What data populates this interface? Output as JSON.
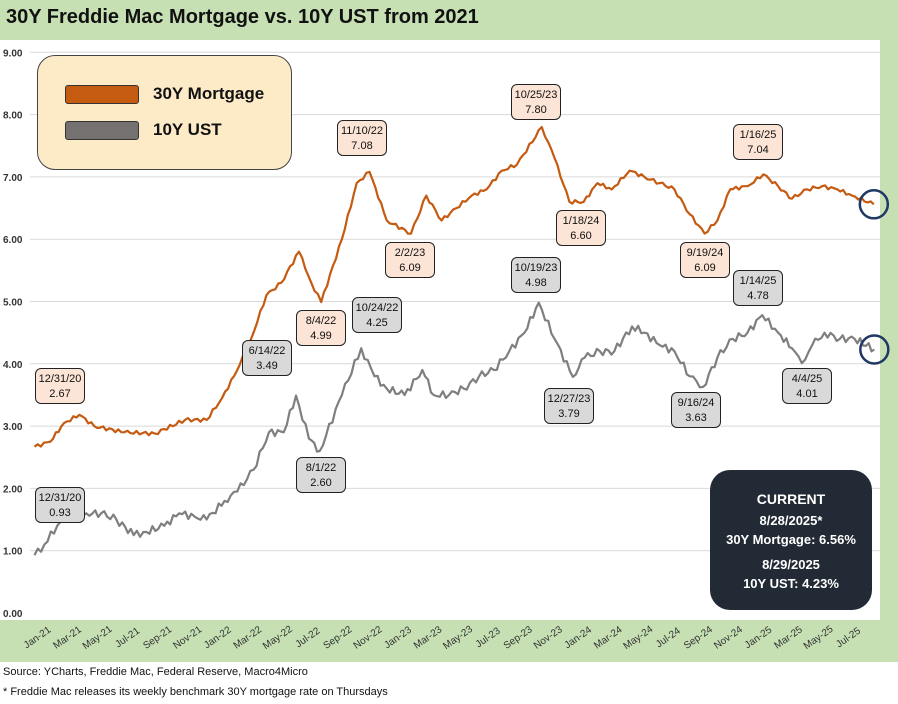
{
  "chart_data": {
    "type": "line",
    "title": "30Y Freddie Mac Mortgage vs. 10Y UST from 2021",
    "xlabel": "",
    "ylabel": "",
    "ylim": [
      0,
      9
    ],
    "yticks": [
      "0.00",
      "1.00",
      "2.00",
      "3.00",
      "4.00",
      "5.00",
      "6.00",
      "7.00",
      "8.00",
      "9.00"
    ],
    "xticks": [
      "Jan-21",
      "Mar-21",
      "May-21",
      "Jul-21",
      "Sep-21",
      "Nov-21",
      "Jan-22",
      "Mar-22",
      "May-22",
      "Jul-22",
      "Sep-22",
      "Nov-22",
      "Jan-23",
      "Mar-23",
      "May-23",
      "Jul-23",
      "Sep-23",
      "Nov-23",
      "Jan-24",
      "Mar-24",
      "May-24",
      "Jul-24",
      "Sep-24",
      "Nov-24",
      "Jan-25",
      "Mar-25",
      "May-25",
      "Jul-25"
    ],
    "grid": true,
    "legend_placement": "top-left",
    "series": [
      {
        "name": "30Y Mortgage",
        "color": "#c55a11",
        "points": [
          [
            "2020-12-31",
            2.67
          ],
          [
            "2021-02-01",
            2.75
          ],
          [
            "2021-03-01",
            3.05
          ],
          [
            "2021-04-01",
            3.18
          ],
          [
            "2021-05-01",
            3.0
          ],
          [
            "2021-07-01",
            2.9
          ],
          [
            "2021-09-01",
            2.88
          ],
          [
            "2021-11-01",
            3.1
          ],
          [
            "2021-12-15",
            3.1
          ],
          [
            "2022-01-15",
            3.45
          ],
          [
            "2022-02-15",
            3.9
          ],
          [
            "2022-03-15",
            4.4
          ],
          [
            "2022-04-15",
            5.1
          ],
          [
            "2022-05-15",
            5.3
          ],
          [
            "2022-06-20",
            5.8
          ],
          [
            "2022-07-15",
            5.3
          ],
          [
            "2022-08-04",
            4.99
          ],
          [
            "2022-09-15",
            6.0
          ],
          [
            "2022-10-15",
            6.9
          ],
          [
            "2022-11-10",
            7.08
          ],
          [
            "2022-12-15",
            6.3
          ],
          [
            "2023-02-02",
            6.09
          ],
          [
            "2023-03-05",
            6.7
          ],
          [
            "2023-04-05",
            6.3
          ],
          [
            "2023-05-05",
            6.5
          ],
          [
            "2023-06-05",
            6.7
          ],
          [
            "2023-07-05",
            6.8
          ],
          [
            "2023-08-05",
            7.1
          ],
          [
            "2023-09-05",
            7.2
          ],
          [
            "2023-10-25",
            7.8
          ],
          [
            "2023-11-20",
            7.3
          ],
          [
            "2023-12-20",
            6.6
          ],
          [
            "2024-01-18",
            6.6
          ],
          [
            "2024-02-15",
            6.9
          ],
          [
            "2024-03-15",
            6.8
          ],
          [
            "2024-04-20",
            7.1
          ],
          [
            "2024-05-20",
            7.0
          ],
          [
            "2024-06-20",
            6.9
          ],
          [
            "2024-07-20",
            6.8
          ],
          [
            "2024-08-20",
            6.4
          ],
          [
            "2024-09-19",
            6.09
          ],
          [
            "2024-10-15",
            6.3
          ],
          [
            "2024-11-10",
            6.8
          ],
          [
            "2024-12-15",
            6.85
          ],
          [
            "2025-01-16",
            7.04
          ],
          [
            "2025-02-15",
            6.85
          ],
          [
            "2025-03-15",
            6.65
          ],
          [
            "2025-04-15",
            6.8
          ],
          [
            "2025-05-15",
            6.85
          ],
          [
            "2025-06-15",
            6.8
          ],
          [
            "2025-07-15",
            6.7
          ],
          [
            "2025-08-28",
            6.56
          ]
        ]
      },
      {
        "name": "10Y UST",
        "color": "#7f7f7f",
        "points": [
          [
            "2020-12-31",
            0.93
          ],
          [
            "2021-01-20",
            1.1
          ],
          [
            "2021-02-15",
            1.4
          ],
          [
            "2021-03-20",
            1.7
          ],
          [
            "2021-04-15",
            1.6
          ],
          [
            "2021-05-15",
            1.6
          ],
          [
            "2021-06-15",
            1.5
          ],
          [
            "2021-07-20",
            1.25
          ],
          [
            "2021-08-15",
            1.3
          ],
          [
            "2021-09-20",
            1.4
          ],
          [
            "2021-10-20",
            1.6
          ],
          [
            "2021-11-20",
            1.55
          ],
          [
            "2021-12-15",
            1.5
          ],
          [
            "2022-01-20",
            1.8
          ],
          [
            "2022-02-15",
            1.95
          ],
          [
            "2022-03-20",
            2.3
          ],
          [
            "2022-04-20",
            2.9
          ],
          [
            "2022-05-20",
            2.9
          ],
          [
            "2022-06-14",
            3.49
          ],
          [
            "2022-07-10",
            2.8
          ],
          [
            "2022-08-01",
            2.6
          ],
          [
            "2022-09-15",
            3.5
          ],
          [
            "2022-10-24",
            4.25
          ],
          [
            "2022-11-20",
            3.8
          ],
          [
            "2022-12-15",
            3.6
          ],
          [
            "2023-01-20",
            3.5
          ],
          [
            "2023-02-25",
            3.9
          ],
          [
            "2023-03-20",
            3.5
          ],
          [
            "2023-04-20",
            3.5
          ],
          [
            "2023-05-20",
            3.6
          ],
          [
            "2023-06-20",
            3.8
          ],
          [
            "2023-07-20",
            3.9
          ],
          [
            "2023-08-20",
            4.2
          ],
          [
            "2023-09-20",
            4.5
          ],
          [
            "2023-10-19",
            4.98
          ],
          [
            "2023-11-20",
            4.4
          ],
          [
            "2023-12-27",
            3.79
          ],
          [
            "2024-01-20",
            4.1
          ],
          [
            "2024-02-20",
            4.2
          ],
          [
            "2024-03-20",
            4.2
          ],
          [
            "2024-04-25",
            4.6
          ],
          [
            "2024-05-20",
            4.5
          ],
          [
            "2024-06-20",
            4.3
          ],
          [
            "2024-07-20",
            4.2
          ],
          [
            "2024-08-20",
            3.8
          ],
          [
            "2024-09-16",
            3.63
          ],
          [
            "2024-10-15",
            4.1
          ],
          [
            "2024-11-15",
            4.4
          ],
          [
            "2024-12-15",
            4.5
          ],
          [
            "2025-01-14",
            4.78
          ],
          [
            "2025-02-15",
            4.5
          ],
          [
            "2025-03-15",
            4.25
          ],
          [
            "2025-04-04",
            4.01
          ],
          [
            "2025-04-25",
            4.3
          ],
          [
            "2025-05-20",
            4.5
          ],
          [
            "2025-06-20",
            4.4
          ],
          [
            "2025-07-20",
            4.4
          ],
          [
            "2025-08-29",
            4.23
          ]
        ]
      }
    ],
    "annotations": [
      {
        "series": "30Y Mortgage",
        "date": "12/31/20",
        "value": "2.67"
      },
      {
        "series": "10Y UST",
        "date": "12/31/20",
        "value": "0.93"
      },
      {
        "series": "30Y Mortgage",
        "date": "11/10/22",
        "value": "7.08"
      },
      {
        "series": "30Y Mortgage",
        "date": "8/4/22",
        "value": "4.99"
      },
      {
        "series": "10Y UST",
        "date": "6/14/22",
        "value": "3.49"
      },
      {
        "series": "10Y UST",
        "date": "10/24/22",
        "value": "4.25"
      },
      {
        "series": "10Y UST",
        "date": "8/1/22",
        "value": "2.60"
      },
      {
        "series": "30Y Mortgage",
        "date": "2/2/23",
        "value": "6.09"
      },
      {
        "series": "30Y Mortgage",
        "date": "10/25/23",
        "value": "7.80"
      },
      {
        "series": "10Y UST",
        "date": "10/19/23",
        "value": "4.98"
      },
      {
        "series": "30Y Mortgage",
        "date": "1/18/24",
        "value": "6.60"
      },
      {
        "series": "10Y UST",
        "date": "12/27/23",
        "value": "3.79"
      },
      {
        "series": "30Y Mortgage",
        "date": "9/19/24",
        "value": "6.09"
      },
      {
        "series": "10Y UST",
        "date": "9/16/24",
        "value": "3.63"
      },
      {
        "series": "30Y Mortgage",
        "date": "1/16/25",
        "value": "7.04"
      },
      {
        "series": "10Y UST",
        "date": "1/14/25",
        "value": "4.78"
      },
      {
        "series": "10Y UST",
        "date": "4/4/25",
        "value": "4.01"
      }
    ]
  },
  "legend": {
    "mortgage": "30Y Mortgage",
    "ust": "10Y UST"
  },
  "current": {
    "heading": "CURRENT",
    "mortgage_date": "8/28/2025*",
    "mortgage_line": "30Y Mortgage: 6.56%",
    "ust_date": "8/29/2025",
    "ust_line": "10Y UST: 4.23%"
  },
  "footer": {
    "source": "Source: YCharts, Freddie Mac, Federal Reserve, Macro4Micro",
    "note": "* Freddie Mac releases its weekly benchmark 30Y mortgage rate on Thursdays"
  }
}
